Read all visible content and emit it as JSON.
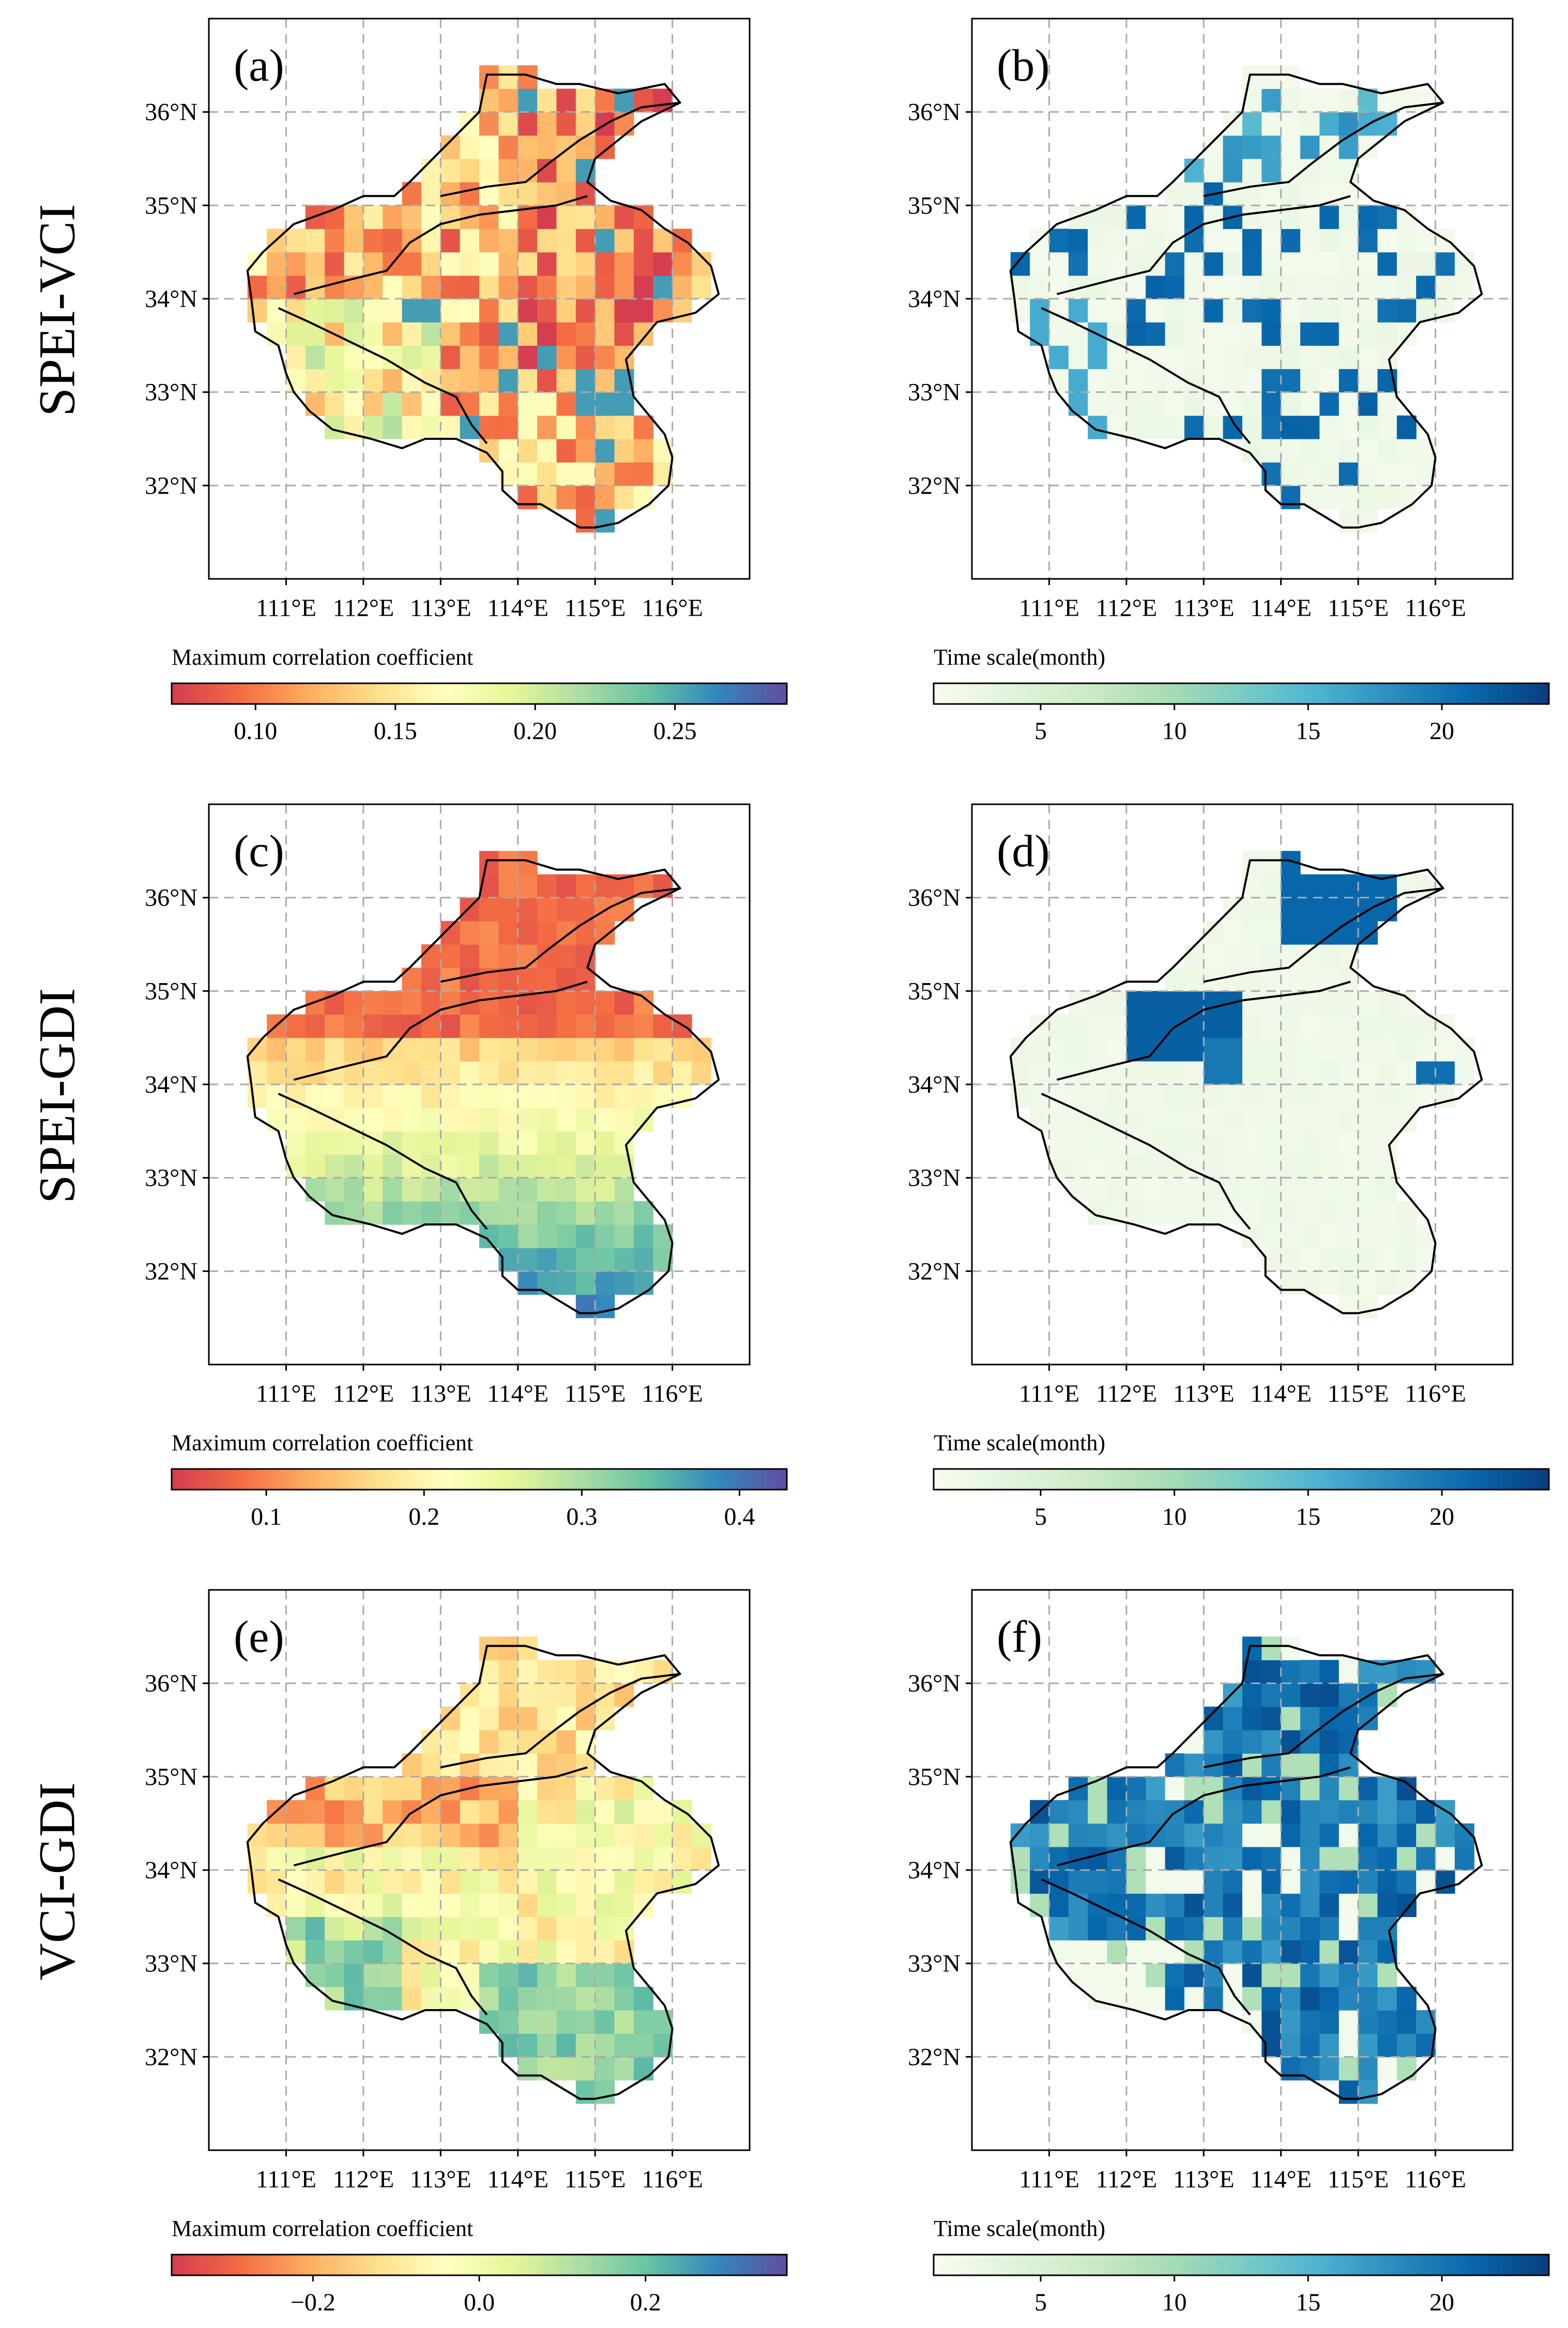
{
  "figure": {
    "rows": [
      {
        "label": "SPEI-VCI"
      },
      {
        "label": "SPEI-GDI"
      },
      {
        "label": "VCI-GDI"
      }
    ],
    "panels": [
      {
        "letter": "(a)",
        "variable": "Maximum correlation coefficient",
        "palette": "corr",
        "range": [
          0.07,
          0.29
        ],
        "ticks": [
          0.1,
          0.15,
          0.2,
          0.25
        ],
        "tick_labels": [
          "0.10",
          "0.15",
          "0.20",
          "0.25"
        ],
        "pattern": "a",
        "colorbar_title": "Maximum correlation coefficient"
      },
      {
        "letter": "(b)",
        "variable": "Time scale(month)",
        "palette": "time",
        "range": [
          1,
          24
        ],
        "ticks": [
          5,
          10,
          15,
          20
        ],
        "tick_labels": [
          "5",
          "10",
          "15",
          "20"
        ],
        "pattern": "b",
        "colorbar_title": "Time scale(month)"
      },
      {
        "letter": "(c)",
        "variable": "Maximum correlation coefficient",
        "palette": "corr",
        "range": [
          0.04,
          0.43
        ],
        "ticks": [
          0.1,
          0.2,
          0.3,
          0.4
        ],
        "tick_labels": [
          "0.1",
          "0.2",
          "0.3",
          "0.4"
        ],
        "pattern": "c",
        "colorbar_title": "Maximum correlation coefficient"
      },
      {
        "letter": "(d)",
        "variable": "Time scale(month)",
        "palette": "time",
        "range": [
          1,
          24
        ],
        "ticks": [
          5,
          10,
          15,
          20
        ],
        "tick_labels": [
          "5",
          "10",
          "15",
          "20"
        ],
        "pattern": "d",
        "colorbar_title": "Time scale(month)"
      },
      {
        "letter": "(e)",
        "variable": "Maximum correlation coefficient",
        "palette": "corr",
        "range": [
          -0.37,
          0.37
        ],
        "ticks": [
          -0.2,
          0.0,
          0.2
        ],
        "tick_labels": [
          "−0.2",
          "0.0",
          "0.2"
        ],
        "pattern": "e",
        "colorbar_title": "Maximum correlation coefficient"
      },
      {
        "letter": "(f)",
        "variable": "Time scale(month)",
        "palette": "time",
        "range": [
          1,
          24
        ],
        "ticks": [
          5,
          10,
          15,
          20
        ],
        "tick_labels": [
          "5",
          "10",
          "15",
          "20"
        ],
        "pattern": "f",
        "colorbar_title": "Time scale(month)"
      }
    ],
    "lon_ticks": [
      111,
      112,
      113,
      114,
      115,
      116
    ],
    "lon_tick_labels": [
      "111°E",
      "112°E",
      "113°E",
      "114°E",
      "115°E",
      "116°E"
    ],
    "lat_ticks": [
      36,
      35,
      34,
      33,
      32
    ],
    "lat_tick_labels": [
      "36°N",
      "35°N",
      "34°N",
      "33°N",
      "32°N"
    ],
    "lon_range": [
      110.0,
      117.0
    ],
    "lat_range": [
      31.0,
      37.0
    ],
    "colors": {
      "corr_palette": [
        "#d53e4f",
        "#f46d43",
        "#fdae61",
        "#fee08b",
        "#ffffbf",
        "#e6f598",
        "#abdda4",
        "#66c2a5",
        "#3288bd",
        "#5e4fa2"
      ],
      "time_palette": [
        "#f7fcf0",
        "#e0f3db",
        "#ccebc5",
        "#a8ddb5",
        "#7bccc4",
        "#4eb3d3",
        "#2b8cbe",
        "#0868ac",
        "#084081"
      ],
      "grid": "#aaaaaa",
      "boundary": "#000000"
    }
  }
}
